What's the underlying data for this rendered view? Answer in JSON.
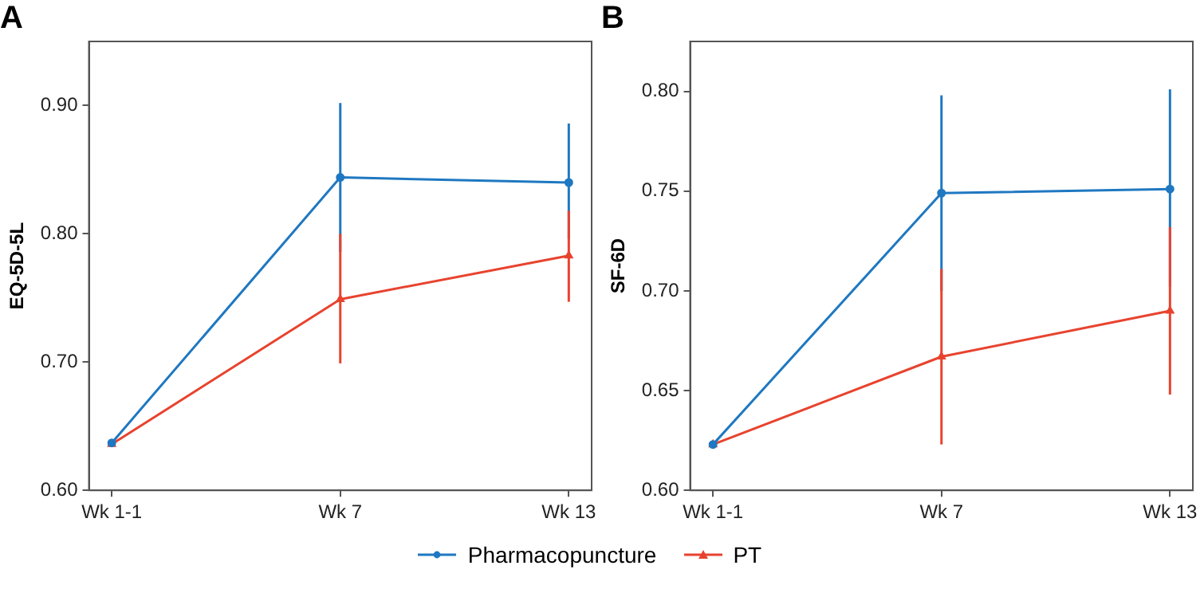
{
  "chart_data": [
    {
      "type": "line",
      "title": "A",
      "ylabel": "EQ-5D-5L",
      "categories": [
        "Wk 1-1",
        "Wk 7",
        "Wk 13"
      ],
      "ylim": [
        0.6,
        0.95
      ],
      "yticks": [
        {
          "value": 0.6,
          "label": "0.60"
        },
        {
          "value": 0.7,
          "label": "0.70"
        },
        {
          "value": 0.8,
          "label": "0.80"
        },
        {
          "value": 0.9,
          "label": "0.90"
        }
      ],
      "legend": "bottom",
      "series": [
        {
          "name": "Pharmacopuncture",
          "color": "#1f78c1",
          "marker": "circle",
          "values": [
            0.637,
            0.844,
            0.84
          ],
          "errors": [
            null,
            [
              0.786,
              0.902
            ],
            [
              0.796,
              0.886
            ]
          ]
        },
        {
          "name": "PT",
          "color": "#e8432e",
          "marker": "triangle",
          "values": [
            0.636,
            0.749,
            0.783
          ],
          "errors": [
            null,
            [
              0.699,
              0.8
            ],
            [
              0.747,
              0.818
            ]
          ]
        }
      ]
    },
    {
      "type": "line",
      "title": "B",
      "ylabel": "SF-6D",
      "categories": [
        "Wk 1-1",
        "Wk 7",
        "Wk 13"
      ],
      "ylim": [
        0.6,
        0.825
      ],
      "yticks": [
        {
          "value": 0.6,
          "label": "0.60"
        },
        {
          "value": 0.65,
          "label": "0.65"
        },
        {
          "value": 0.7,
          "label": "0.70"
        },
        {
          "value": 0.75,
          "label": "0.75"
        },
        {
          "value": 0.8,
          "label": "0.80"
        }
      ],
      "legend": "bottom",
      "series": [
        {
          "name": "Pharmacopuncture",
          "color": "#1f78c1",
          "marker": "circle",
          "values": [
            0.623,
            0.749,
            0.751
          ],
          "errors": [
            null,
            [
              0.7,
              0.798
            ],
            [
              0.702,
              0.801
            ]
          ]
        },
        {
          "name": "PT",
          "color": "#e8432e",
          "marker": "triangle",
          "values": [
            0.623,
            0.667,
            0.69
          ],
          "errors": [
            null,
            [
              0.623,
              0.711
            ],
            [
              0.648,
              0.732
            ]
          ]
        }
      ]
    }
  ]
}
